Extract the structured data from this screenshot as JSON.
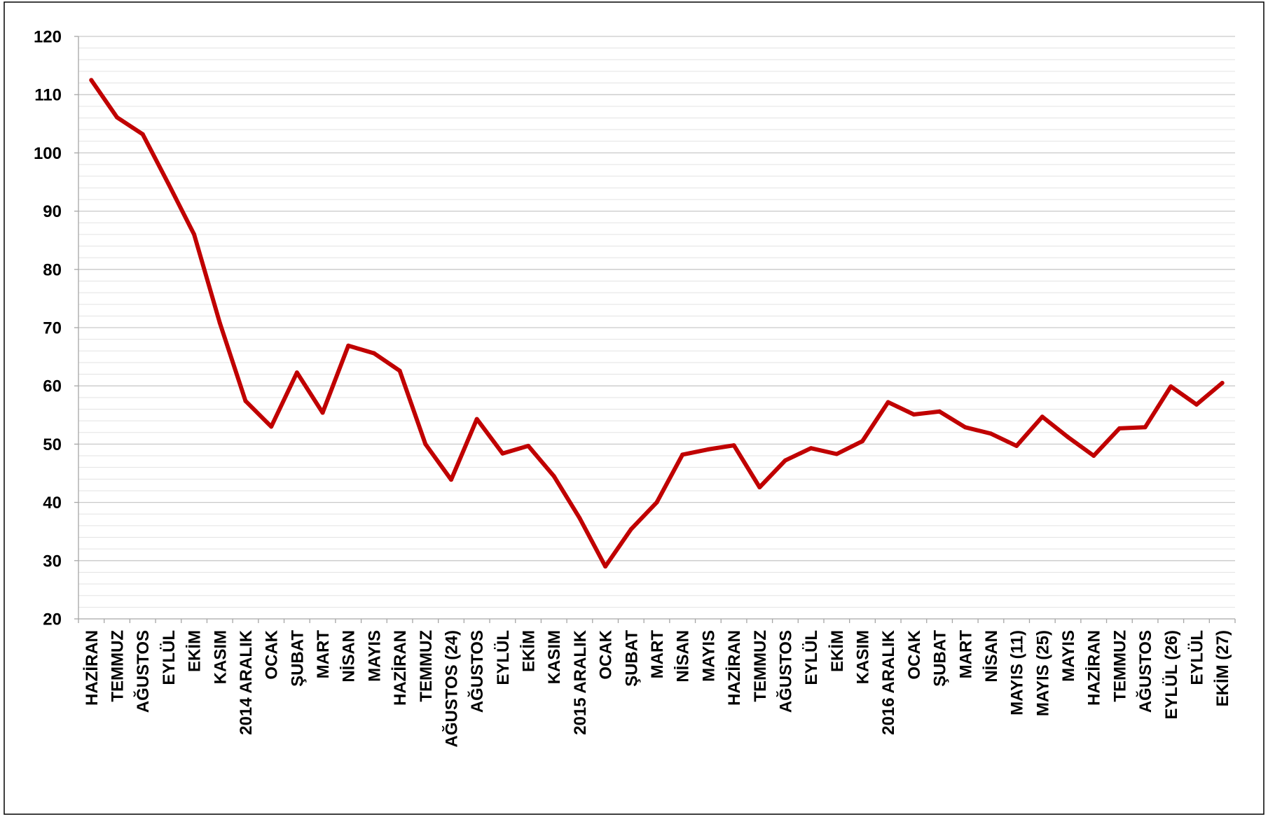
{
  "chart_data": {
    "type": "line",
    "categories": [
      "HAZİRAN",
      "TEMMUZ",
      "AĞUSTOS",
      "EYLÜL",
      "EKİM",
      "KASIM",
      "2014 ARALIK",
      "OCAK",
      "ŞUBAT",
      "MART",
      "NİSAN",
      "MAYIS",
      "HAZİRAN",
      "TEMMUZ",
      "AĞUSTOS (24)",
      "AĞUSTOS",
      "EYLÜL",
      "EKİM",
      "KASIM",
      "2015 ARALIK",
      "OCAK",
      "ŞUBAT",
      "MART",
      "NİSAN",
      "MAYIS",
      "HAZİRAN",
      "TEMMUZ",
      "AĞUSTOS",
      "EYLÜL",
      "EKİM",
      "KASIM",
      "2016 ARALIK",
      "OCAK",
      "ŞUBAT",
      "MART",
      "NİSAN",
      "MAYIS (11)",
      "MAYIS (25)",
      "MAYIS",
      "HAZİRAN",
      "TEMMUZ",
      "AĞUSTOS",
      "EYLÜL (26)",
      "EYLÜL",
      "EKİM (27)"
    ],
    "series": [
      {
        "color": "#C00000",
        "values": [
          112.5,
          106.1,
          103.2,
          94.7,
          86.0,
          70.8,
          57.4,
          53.0,
          62.3,
          55.4,
          66.9,
          65.6,
          62.6,
          50.0,
          43.9,
          54.3,
          48.4,
          49.7,
          44.5,
          37.3,
          29.0,
          35.4,
          40.0,
          48.2,
          49.1,
          49.8,
          42.6,
          47.2,
          49.3,
          48.3,
          50.5,
          57.2,
          55.1,
          55.6,
          52.9,
          51.8,
          49.7,
          54.7,
          51.2,
          48.0,
          52.7,
          52.9,
          59.9,
          56.8,
          60.5
        ]
      }
    ],
    "ylim": [
      20,
      120
    ],
    "yticks": [
      20,
      30,
      40,
      50,
      60,
      70,
      80,
      90,
      100,
      110,
      120
    ],
    "grid": true,
    "minor_grid": true
  }
}
